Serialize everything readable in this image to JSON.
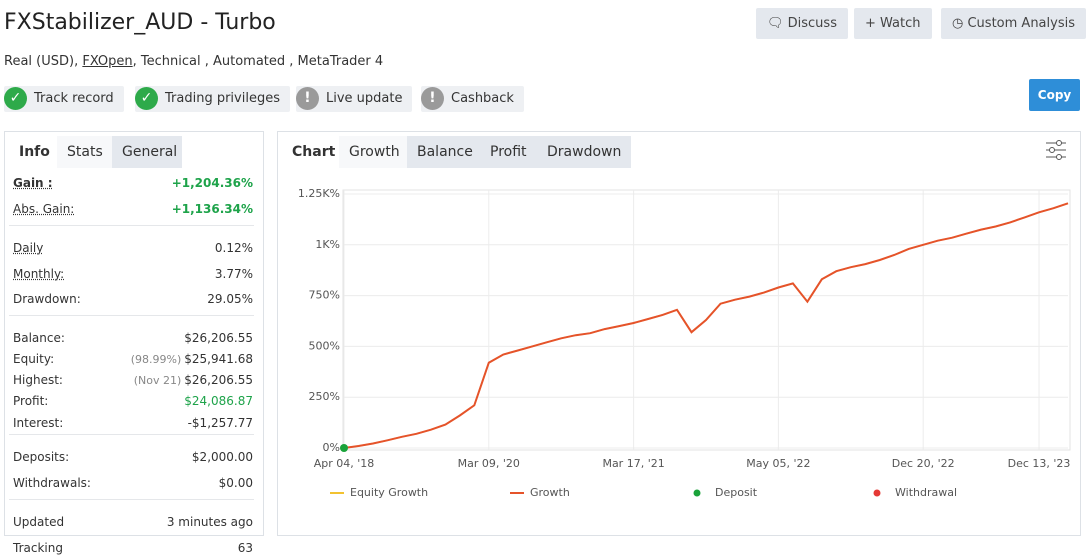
{
  "header": {
    "title": "FXStabilizer_AUD - Turbo",
    "account": "Real (USD),",
    "broker": "FXOpen",
    "details": ", Technical , Automated , MetaTrader 4",
    "buttons": [
      "Discuss",
      "Watch",
      "Custom Analysis"
    ],
    "copy": "Copy"
  },
  "badges": [
    "Track record",
    "Trading privileges",
    "Live update",
    "Cashback"
  ],
  "stats_tabs": [
    "Info",
    "Stats",
    "General"
  ],
  "stats": [
    [
      {
        "label": "Gain :",
        "value": "+1,204.36%"
      },
      {
        "label": "Abs. Gain:",
        "value": "+1,136.34%"
      }
    ],
    [
      {
        "label": "Daily",
        "value": "0.12%"
      },
      {
        "label": "Monthly:",
        "value": "3.77%"
      },
      {
        "label": "Drawdown:",
        "value": "29.05%"
      }
    ],
    [
      {
        "label": "Balance:",
        "value": "$26,206.55"
      },
      {
        "label": "Equity:",
        "note": "(98.99%)",
        "value": "$25,941.68"
      },
      {
        "label": "Highest:",
        "note": "(Nov 21)",
        "value": "$26,206.55"
      },
      {
        "label": "Profit:",
        "value": "$24,086.87"
      },
      {
        "label": "Interest:",
        "value": "-$1,257.77"
      }
    ],
    [
      {
        "label": "Deposits:",
        "value": "$2,000.00"
      },
      {
        "label": "Withdrawals:",
        "value": "$0.00"
      }
    ],
    [
      {
        "label": "Updated",
        "value": "3 minutes ago"
      },
      {
        "label": "Tracking",
        "value": "63"
      }
    ]
  ],
  "chart_tabs": [
    "Chart",
    "Growth",
    "Balance",
    "Profit",
    "Drawdown"
  ],
  "chart_data": {
    "type": "line",
    "categories": [
      "Apr 04, '18",
      null,
      null,
      null,
      null,
      null,
      null,
      null,
      null,
      null,
      "Mar 09, '20",
      null,
      null,
      null,
      null,
      null,
      null,
      null,
      null,
      null,
      "Mar 17, '21",
      null,
      null,
      null,
      null,
      null,
      null,
      null,
      null,
      null,
      "May 05, '22",
      null,
      null,
      null,
      null,
      null,
      null,
      null,
      null,
      null,
      "Dec 20, '22",
      null,
      null,
      null,
      null,
      null,
      null,
      null,
      "Dec 13, '23",
      null,
      null
    ],
    "series": [
      {
        "name": "Equity Growth",
        "color": "#f2c230",
        "values": [
          0,
          10,
          22,
          38,
          55,
          70,
          90,
          115,
          160,
          210,
          420,
          460,
          480,
          500,
          520,
          540,
          555,
          565,
          585,
          600,
          615,
          635,
          655,
          680,
          570,
          630,
          710,
          730,
          745,
          765,
          790,
          810,
          720,
          830,
          870,
          890,
          905,
          925,
          950,
          980,
          1000,
          1020,
          1035,
          1055,
          1075,
          1090,
          1110,
          1135,
          1160,
          1180,
          1204
        ]
      },
      {
        "name": "Growth",
        "color": "#e5532a",
        "values": [
          0,
          10,
          22,
          38,
          55,
          70,
          90,
          115,
          160,
          210,
          420,
          460,
          480,
          500,
          520,
          540,
          555,
          565,
          585,
          600,
          615,
          635,
          655,
          680,
          570,
          630,
          710,
          730,
          745,
          765,
          790,
          810,
          720,
          830,
          870,
          890,
          905,
          925,
          950,
          980,
          1000,
          1020,
          1035,
          1055,
          1075,
          1090,
          1110,
          1135,
          1160,
          1180,
          1204
        ]
      },
      {
        "name": "Deposit",
        "color": "#1aa33a",
        "values": [
          0,
          null,
          null,
          null,
          null,
          null,
          null,
          null,
          null,
          null,
          null,
          null,
          null,
          null,
          null,
          null,
          null,
          null,
          null,
          null,
          null,
          null,
          null,
          null,
          null,
          null,
          null,
          null,
          null,
          null,
          null,
          null,
          null,
          null,
          null,
          null,
          null,
          null,
          null,
          null,
          null,
          null,
          null,
          null,
          null,
          null,
          null,
          null,
          null,
          null,
          null
        ]
      },
      {
        "name": "Withdrawal",
        "color": "#e53935",
        "values": [
          null,
          null,
          null,
          null,
          null,
          null,
          null,
          null,
          null,
          null,
          null,
          null,
          null,
          null,
          null,
          null,
          null,
          null,
          null,
          null,
          null,
          null,
          null,
          null,
          null,
          null,
          null,
          null,
          null,
          null,
          null,
          null,
          null,
          null,
          null,
          null,
          null,
          null,
          null,
          null,
          null,
          null,
          null,
          null,
          null,
          null,
          null,
          null,
          null,
          null,
          null
        ]
      }
    ],
    "ylim": [
      0,
      1250
    ],
    "yticks": [
      {
        "value": 0,
        "label": "0%"
      },
      {
        "value": 250,
        "label": "250%"
      },
      {
        "value": 500,
        "label": "500%"
      },
      {
        "value": 750,
        "label": "750%"
      },
      {
        "value": 1000,
        "label": "1K%"
      },
      {
        "value": 1250,
        "label": "1.25K%"
      }
    ],
    "grid": true
  }
}
